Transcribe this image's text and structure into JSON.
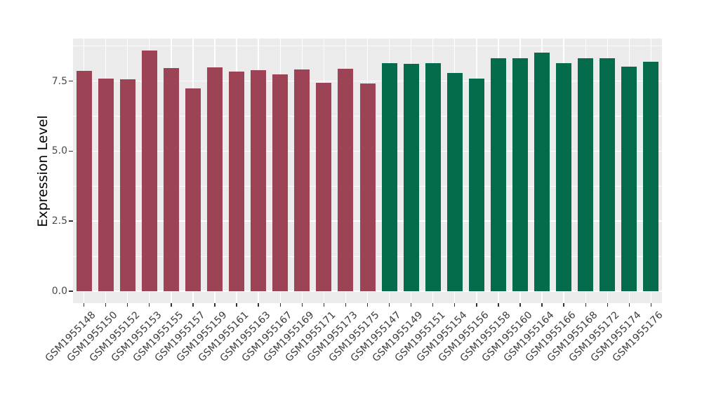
{
  "figure": {
    "background": "#FFFFFF",
    "panel_background": "#EBEBEB",
    "grid_color": "#FFFFFF",
    "tick_mark_color": "#333333",
    "axis_text_color": "#4A4A4A",
    "axis_title_color": "#000000"
  },
  "chart_data": {
    "type": "bar",
    "title": "",
    "xlabel": "",
    "ylabel": "Expression Level",
    "ylim": [
      0,
      9.02
    ],
    "grid": true,
    "legend": "none",
    "ytick_values": [
      0,
      2.5,
      5,
      7.5
    ],
    "ytick_labels": [
      "0.0",
      "2.5",
      "5.0",
      "7.5"
    ],
    "categories": [
      "GSM1955148",
      "GSM1955150",
      "GSM1955152",
      "GSM1955153",
      "GSM1955155",
      "GSM1955157",
      "GSM1955159",
      "GSM1955161",
      "GSM1955163",
      "GSM1955167",
      "GSM1955169",
      "GSM1955171",
      "GSM1955173",
      "GSM1955175",
      "GSM1955147",
      "GSM1955149",
      "GSM1955151",
      "GSM1955154",
      "GSM1955156",
      "GSM1955158",
      "GSM1955160",
      "GSM1955164",
      "GSM1955166",
      "GSM1955168",
      "GSM1955172",
      "GSM1955174",
      "GSM1955176"
    ],
    "values": [
      7.87,
      7.58,
      7.56,
      8.59,
      7.97,
      7.24,
      7.99,
      7.83,
      7.9,
      7.74,
      7.91,
      7.44,
      7.93,
      7.42,
      8.15,
      8.11,
      8.14,
      7.79,
      7.58,
      8.32,
      8.32,
      8.52,
      8.15,
      8.33,
      8.33,
      8.02,
      8.18
    ],
    "bar_groups": [
      "group1",
      "group1",
      "group1",
      "group1",
      "group1",
      "group1",
      "group1",
      "group1",
      "group1",
      "group1",
      "group1",
      "group1",
      "group1",
      "group1",
      "group2",
      "group2",
      "group2",
      "group2",
      "group2",
      "group2",
      "group2",
      "group2",
      "group2",
      "group2",
      "group2",
      "group2",
      "group2"
    ],
    "group_colors": {
      "group1": "#9C4355",
      "group2": "#046B4D"
    }
  }
}
